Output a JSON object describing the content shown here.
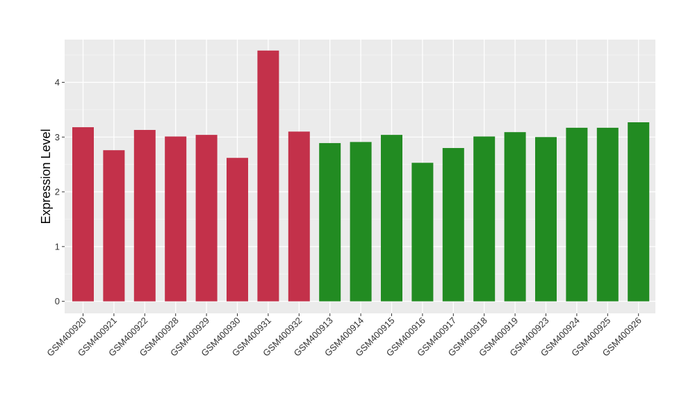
{
  "chart_data": {
    "type": "bar",
    "ylabel": "Expression Level",
    "xlabel": "",
    "ylim": [
      -0.22,
      4.78
    ],
    "yticks": [
      0,
      1,
      2,
      3,
      4
    ],
    "grid": true,
    "categories": [
      "GSM400920",
      "GSM400921",
      "GSM400922",
      "GSM400928",
      "GSM400929",
      "GSM400930",
      "GSM400931",
      "GSM400932",
      "GSM400913",
      "GSM400914",
      "GSM400915",
      "GSM400916",
      "GSM400917",
      "GSM400918",
      "GSM400919",
      "GSM400923",
      "GSM400924",
      "GSM400925",
      "GSM400926"
    ],
    "values": [
      3.18,
      2.76,
      3.13,
      3.01,
      3.04,
      2.62,
      4.58,
      3.1,
      2.89,
      2.91,
      3.04,
      2.53,
      2.8,
      3.01,
      3.09,
      3.0,
      3.17,
      3.17,
      3.27
    ],
    "groups": [
      "red",
      "red",
      "red",
      "red",
      "red",
      "red",
      "red",
      "red",
      "green",
      "green",
      "green",
      "green",
      "green",
      "green",
      "green",
      "green",
      "green",
      "green",
      "green"
    ],
    "colors": {
      "red": "#C3314A",
      "green": "#228B22",
      "panel": "#EBEBEB",
      "grid_major": "#FFFFFF",
      "grid_minor": "#F5F5F5"
    }
  }
}
